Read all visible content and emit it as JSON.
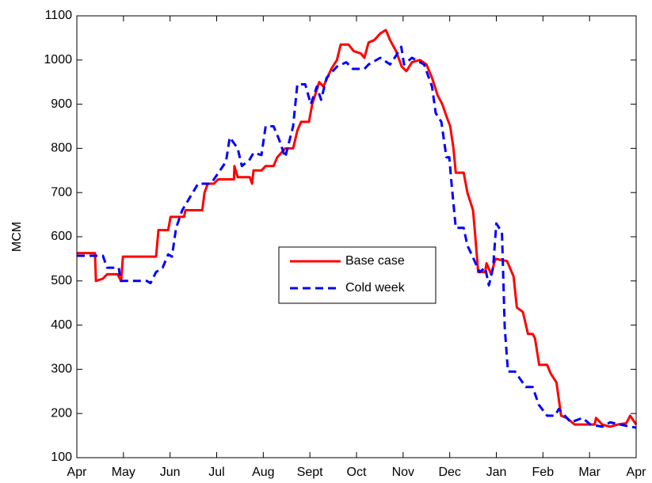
{
  "chart_data": {
    "type": "line",
    "y_label": "MCM",
    "xlim": [
      0,
      12
    ],
    "xticks": [
      {
        "value": 0,
        "label": "Apr"
      },
      {
        "value": 1,
        "label": "May"
      },
      {
        "value": 2,
        "label": "Jun"
      },
      {
        "value": 3,
        "label": "Jul"
      },
      {
        "value": 4,
        "label": "Aug"
      },
      {
        "value": 5,
        "label": "Sept"
      },
      {
        "value": 6,
        "label": "Oct"
      },
      {
        "value": 7,
        "label": "Nov"
      },
      {
        "value": 8,
        "label": "Dec"
      },
      {
        "value": 9,
        "label": "Jan"
      },
      {
        "value": 10,
        "label": "Feb"
      },
      {
        "value": 11,
        "label": "Mar"
      },
      {
        "value": 12,
        "label": "Apr"
      }
    ],
    "ylim": [
      100,
      1100
    ],
    "yticks": [
      100,
      200,
      300,
      400,
      500,
      600,
      700,
      800,
      900,
      1000,
      1100
    ],
    "grid": false,
    "legend_position": "center",
    "series": [
      {
        "name": "Base case",
        "color": "#ff0000",
        "dash": false,
        "x": [
          0,
          0.39,
          0.41,
          0.56,
          0.65,
          0.87,
          0.95,
          0.99,
          1.7,
          1.75,
          1.96,
          2.01,
          2.3,
          2.33,
          2.69,
          2.74,
          2.81,
          2.94,
          3.03,
          3.37,
          3.38,
          3.45,
          3.71,
          3.76,
          3.79,
          3.96,
          4.05,
          4.22,
          4.3,
          4.47,
          4.64,
          4.73,
          4.81,
          4.98,
          5.05,
          5.2,
          5.29,
          5.46,
          5.58,
          5.66,
          5.83,
          5.94,
          6.09,
          6.17,
          6.26,
          6.38,
          6.51,
          6.63,
          6.72,
          6.85,
          6.97,
          7.07,
          7.19,
          7.36,
          7.5,
          7.62,
          7.74,
          7.84,
          7.94,
          8.01,
          8.08,
          8.13,
          8.3,
          8.38,
          8.5,
          8.55,
          8.61,
          8.76,
          8.79,
          8.89,
          8.98,
          9.23,
          9.37,
          9.44,
          9.57,
          9.68,
          9.78,
          9.83,
          9.92,
          10.09,
          10.17,
          10.29,
          10.39,
          10.51,
          10.68,
          11.11,
          11.14,
          11.27,
          11.44,
          11.61,
          11.79,
          11.87,
          12
        ],
        "values": [
          563,
          563,
          500,
          505,
          515,
          515,
          500,
          555,
          555,
          615,
          615,
          645,
          645,
          660,
          660,
          700,
          720,
          720,
          730,
          730,
          760,
          735,
          735,
          720,
          750,
          750,
          760,
          760,
          780,
          800,
          800,
          840,
          860,
          860,
          900,
          950,
          940,
          980,
          1000,
          1035,
          1035,
          1020,
          1015,
          1005,
          1040,
          1045,
          1060,
          1068,
          1045,
          1020,
          985,
          975,
          995,
          1000,
          990,
          960,
          920,
          900,
          870,
          850,
          800,
          745,
          745,
          700,
          660,
          600,
          520,
          520,
          540,
          515,
          550,
          545,
          510,
          440,
          430,
          380,
          380,
          370,
          310,
          310,
          290,
          270,
          195,
          190,
          175,
          175,
          190,
          175,
          170,
          175,
          178,
          195,
          175
        ]
      },
      {
        "name": "Cold week",
        "color": "#0000ff",
        "dash": true,
        "x": [
          0,
          0.56,
          0.65,
          0.9,
          0.94,
          1.5,
          1.58,
          1.7,
          1.84,
          1.96,
          2.04,
          2.13,
          2.26,
          2.43,
          2.6,
          2.86,
          2.94,
          3.2,
          3.28,
          3.45,
          3.54,
          3.71,
          3.79,
          3.96,
          4.05,
          4.22,
          4.34,
          4.47,
          4.64,
          4.73,
          4.9,
          5.02,
          5.15,
          5.24,
          5.36,
          5.58,
          5.78,
          5.92,
          6.17,
          6.26,
          6.51,
          6.72,
          6.85,
          6.96,
          7.02,
          7.19,
          7.45,
          7.62,
          7.7,
          7.82,
          7.93,
          7.99,
          8.04,
          8.13,
          8.3,
          8.38,
          8.47,
          8.64,
          8.76,
          8.84,
          8.93,
          9.0,
          9.12,
          9.18,
          9.25,
          9.4,
          9.63,
          9.78,
          9.91,
          10.09,
          10.26,
          10.34,
          10.6,
          10.85,
          11.02,
          11.27,
          11.44,
          11.79,
          12
        ],
        "values": [
          557,
          557,
          530,
          530,
          500,
          500,
          495,
          520,
          530,
          560,
          555,
          620,
          660,
          690,
          720,
          720,
          730,
          770,
          825,
          800,
          760,
          775,
          790,
          785,
          850,
          850,
          820,
          780,
          850,
          945,
          945,
          900,
          940,
          910,
          960,
          985,
          995,
          980,
          980,
          990,
          1005,
          990,
          1010,
          1030,
          990,
          1005,
          990,
          940,
          880,
          860,
          780,
          780,
          720,
          620,
          620,
          580,
          560,
          520,
          530,
          490,
          530,
          630,
          610,
          395,
          295,
          295,
          260,
          260,
          220,
          195,
          195,
          210,
          180,
          190,
          175,
          170,
          180,
          172,
          168
        ]
      }
    ]
  }
}
